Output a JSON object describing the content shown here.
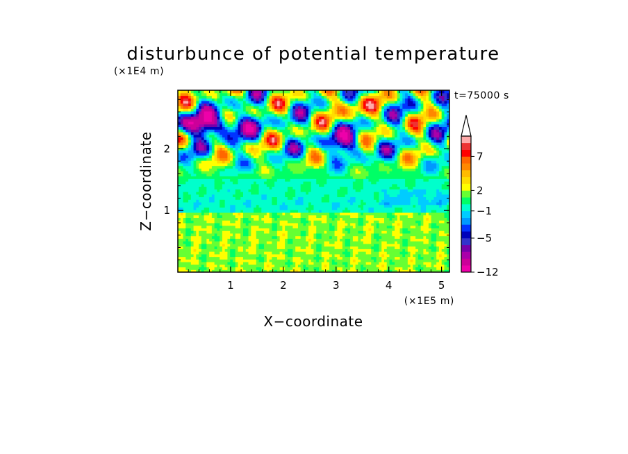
{
  "chart_data": {
    "type": "heatmap",
    "title": "disturbunce of potential temperature",
    "time_label": "t=75000 s",
    "xlabel": "X−coordinate",
    "ylabel": "Z−coordinate",
    "x_scale_label": "(×1E5 m)",
    "y_scale_label": "(×1E4 m)",
    "xlim": [
      0,
      5.15
    ],
    "ylim": [
      0,
      2.95
    ],
    "x_ticks": [
      "1",
      "2",
      "3",
      "4",
      "5"
    ],
    "y_ticks": [
      "1",
      "2"
    ],
    "colorbar": {
      "levels": [
        "-12",
        "-10",
        "-8",
        "-7",
        "-6",
        "-5",
        "-4",
        "-3",
        "-2",
        "-1",
        "0",
        "1",
        "2",
        "3",
        "4",
        "5",
        "6",
        "7",
        "8",
        "9",
        "10"
      ],
      "labeled_ticks": [
        "-12",
        "-5",
        "-1",
        "2",
        "7"
      ],
      "colors": [
        "#ee00aa",
        "#cc0099",
        "#aa00aa",
        "#7700aa",
        "#3333cc",
        "#0000bb",
        "#0033ff",
        "#0099ff",
        "#00ccff",
        "#00ffcc",
        "#00ff66",
        "#66ff33",
        "#ffff00",
        "#ffdd00",
        "#ffbb00",
        "#ff8800",
        "#ff6600",
        "#ff0000",
        "#ee3333",
        "#ffaaaa"
      ],
      "extend": "max"
    },
    "bands": [
      {
        "z_range": [
          0.0,
          0.95
        ],
        "dominant_level": "1 to 3",
        "description_color": "yellow/orange"
      },
      {
        "z_range": [
          0.95,
          1.5
        ],
        "dominant_level": "-1 to 0",
        "description_color": "green/cyan"
      },
      {
        "z_range": [
          1.5,
          2.95
        ],
        "dominant_level": "-8 to 7",
        "description_color": "mixed wave pattern"
      }
    ]
  }
}
